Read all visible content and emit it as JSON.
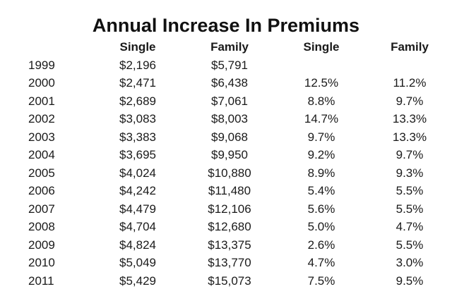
{
  "page": {
    "background_color": "#ffffff",
    "text_color": "#1a1a1a"
  },
  "chart_data": {
    "type": "table",
    "title": "Annual Increase In Premiums",
    "columns": [
      "",
      "Single",
      "Family",
      "Single",
      "Family"
    ],
    "column_groups": {
      "premiums": [
        "Single",
        "Family"
      ],
      "percent_increase": [
        "Single",
        "Family"
      ]
    },
    "rows": [
      [
        "1999",
        "$2,196",
        "$5,791",
        "",
        ""
      ],
      [
        "2000",
        "$2,471",
        "$6,438",
        "12.5%",
        "11.2%"
      ],
      [
        "2001",
        "$2,689",
        "$7,061",
        "8.8%",
        "9.7%"
      ],
      [
        "2002",
        "$3,083",
        "$8,003",
        "14.7%",
        "13.3%"
      ],
      [
        "2003",
        "$3,383",
        "$9,068",
        "9.7%",
        "13.3%"
      ],
      [
        "2004",
        "$3,695",
        "$9,950",
        "9.2%",
        "9.7%"
      ],
      [
        "2005",
        "$4,024",
        "$10,880",
        "8.9%",
        "9.3%"
      ],
      [
        "2006",
        "$4,242",
        "$11,480",
        "5.4%",
        "5.5%"
      ],
      [
        "2007",
        "$4,479",
        "$12,106",
        "5.6%",
        "5.5%"
      ],
      [
        "2008",
        "$4,704",
        "$12,680",
        "5.0%",
        "4.7%"
      ],
      [
        "2009",
        "$4,824",
        "$13,375",
        "2.6%",
        "5.5%"
      ],
      [
        "2010",
        "$5,049",
        "$13,770",
        "4.7%",
        "3.0%"
      ],
      [
        "2011",
        "$5,429",
        "$15,073",
        "7.5%",
        "9.5%"
      ]
    ]
  }
}
